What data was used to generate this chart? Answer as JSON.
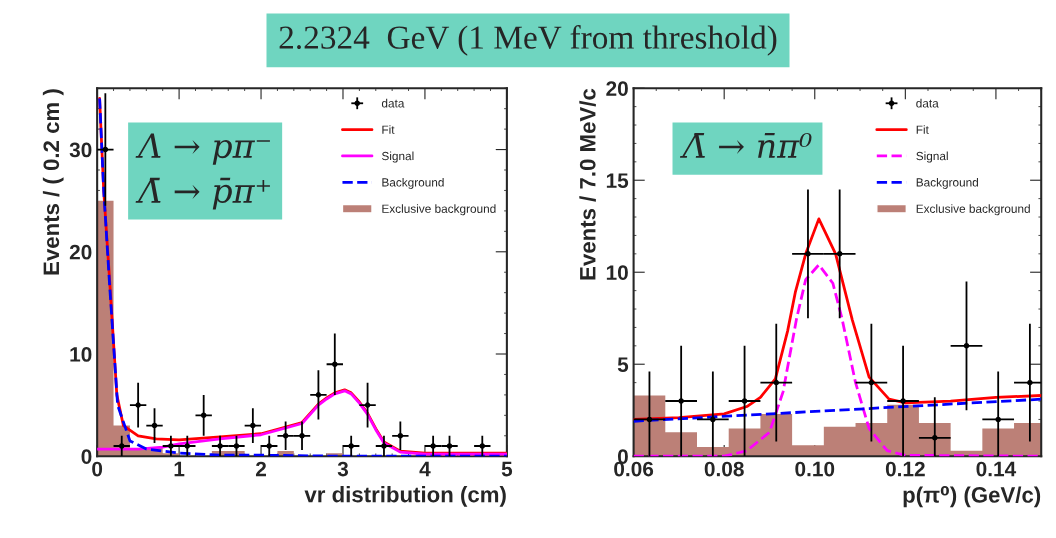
{
  "chart_data": [
    {
      "type": "line",
      "title": "2.2324  GeV (1 MeV from threshold)",
      "xlabel": "vr distribution (cm)",
      "ylabel": "Events / ( 0.2 cm )",
      "xlim": [
        0,
        5
      ],
      "ylim": [
        0,
        36
      ],
      "xticks": [
        0,
        1,
        2,
        3,
        4,
        5
      ],
      "yticks": [
        0,
        10,
        20,
        30
      ],
      "legend": "top right",
      "annotations": [
        "Λ → pπ⁻\nΛ̄ → p̄π⁺"
      ],
      "series": [
        {
          "name": "data",
          "type": "scatter",
          "color": "#000000",
          "marker": "circle",
          "x": [
            0.1,
            0.3,
            0.5,
            0.7,
            0.9,
            1.1,
            1.3,
            1.5,
            1.7,
            1.9,
            2.1,
            2.3,
            2.5,
            2.7,
            2.9,
            3.1,
            3.3,
            3.5,
            3.7,
            4.1,
            4.3,
            4.7
          ],
          "values": [
            30,
            1,
            5,
            3,
            1,
            1,
            4,
            1,
            1,
            3,
            1,
            2,
            2,
            6,
            9,
            1,
            5,
            1,
            2,
            1,
            1,
            1
          ],
          "errors": [
            5.5,
            1,
            2.2,
            1.7,
            1,
            1,
            2,
            1,
            1,
            1.7,
            1,
            1.4,
            1.4,
            2.4,
            3,
            1,
            2.2,
            1,
            1.4,
            1,
            1,
            1
          ],
          "xerrors": [
            0.1,
            0.1,
            0.1,
            0.1,
            0.1,
            0.1,
            0.1,
            0.1,
            0.1,
            0.1,
            0.1,
            0.1,
            0.1,
            0.1,
            0.1,
            0.1,
            0.1,
            0.1,
            0.1,
            0.1,
            0.1,
            0.1
          ]
        },
        {
          "name": "Fit",
          "color": "#ff0000",
          "line_style": "solid",
          "x": [
            0.03,
            0.08,
            0.15,
            0.24,
            0.32,
            0.5,
            0.72,
            1.0,
            1.5,
            2.0,
            2.5,
            2.7,
            2.8,
            2.9,
            3.02,
            3.1,
            3.2,
            3.3,
            3.4,
            3.5,
            3.7,
            4.0,
            4.5,
            5.0
          ],
          "values": [
            35,
            26,
            17.5,
            6,
            3,
            2,
            1.7,
            1.6,
            1.9,
            2.2,
            3.3,
            5.1,
            5.7,
            6.2,
            6.5,
            6.2,
            5.3,
            4.2,
            2.7,
            1.4,
            0.5,
            0.3,
            0.3,
            0.3
          ]
        },
        {
          "name": "Signal",
          "color": "#ff00ff",
          "line_style": "solid",
          "x": [
            0.0,
            0.5,
            0.8,
            1.0,
            1.5,
            2.0,
            2.5,
            2.7,
            2.8,
            2.9,
            3.02,
            3.1,
            3.2,
            3.3,
            3.4,
            3.5,
            3.7,
            4.0,
            4.5,
            5.0
          ],
          "values": [
            0.7,
            0.7,
            0.9,
            1.2,
            1.7,
            2.1,
            3.2,
            5.0,
            5.6,
            6.1,
            6.4,
            6.1,
            5.2,
            4.1,
            2.6,
            1.3,
            0.4,
            0.2,
            0.2,
            0.2
          ]
        },
        {
          "name": "Background",
          "color": "#0000ff",
          "line_style": "dashed",
          "x": [
            0.03,
            0.08,
            0.15,
            0.25,
            0.4,
            0.6,
            1.0,
            1.5,
            2.0,
            3.0,
            4.0,
            5.0
          ],
          "values": [
            35,
            26,
            17,
            5,
            1.5,
            0.7,
            0.3,
            0.1,
            0.1,
            0.0,
            0.0,
            0.0
          ]
        },
        {
          "name": "Exclusive background",
          "type": "histogram",
          "color": "#bc8077",
          "bins": [
            0,
            0.2,
            0.4,
            0.6,
            0.8,
            1.0,
            1.2,
            1.4,
            1.6,
            1.8,
            2.0,
            2.2,
            2.4,
            2.6,
            2.8,
            3.0
          ],
          "values": [
            25,
            3,
            0.8,
            0.8,
            0.3,
            0,
            0,
            0.5,
            0.5,
            0,
            0,
            0.5,
            0,
            0,
            0.3
          ]
        }
      ]
    },
    {
      "type": "line",
      "xlabel": "p(π⁰) (GeV/c)",
      "ylabel": "Events / 7.0 MeV/c",
      "xlim": [
        0.06,
        0.15
      ],
      "ylim": [
        0,
        20
      ],
      "xticks": [
        0.06,
        0.08,
        {
          "value": 0.1,
          "label": "0.10"
        },
        0.12,
        0.14
      ],
      "yticks": [
        0,
        5,
        10,
        15,
        20
      ],
      "legend": "top right",
      "annotations": [
        "Λ̄ → n̄π⁰"
      ],
      "series": [
        {
          "name": "data",
          "type": "scatter",
          "color": "#000000",
          "marker": "circle",
          "x": [
            0.0635,
            0.0705,
            0.0775,
            0.0845,
            0.0915,
            0.0985,
            0.1055,
            0.1125,
            0.1195,
            0.1265,
            0.1335,
            0.1405,
            0.1475
          ],
          "values": [
            2,
            3,
            2,
            3,
            4,
            11,
            11,
            4,
            3,
            1,
            6,
            2,
            4
          ],
          "errors": [
            2.6,
            3,
            2.6,
            3,
            3.2,
            3.5,
            3.5,
            3.2,
            3,
            2.2,
            3.5,
            2.6,
            3.2
          ],
          "xerrors": [
            0.0035,
            0.0035,
            0.0035,
            0.0035,
            0.0035,
            0.0035,
            0.0035,
            0.0035,
            0.0035,
            0.0035,
            0.0035,
            0.0035,
            0.0035
          ]
        },
        {
          "name": "Fit",
          "color": "#ff0000",
          "line_style": "solid",
          "x": [
            0.06,
            0.07,
            0.08,
            0.085,
            0.088,
            0.0913,
            0.094,
            0.0957,
            0.098,
            0.1009,
            0.1046,
            0.1083,
            0.112,
            0.1164,
            0.12,
            0.13,
            0.14,
            0.15
          ],
          "values": [
            2.0,
            2.1,
            2.3,
            2.7,
            3.2,
            4.2,
            6.8,
            8.9,
            11,
            12.9,
            11,
            7.4,
            4.3,
            3.1,
            2.9,
            3.0,
            3.2,
            3.3
          ]
        },
        {
          "name": "Signal",
          "color": "#ff00ff",
          "line_style": "dashed",
          "x": [
            0.06,
            0.08,
            0.085,
            0.09,
            0.093,
            0.096,
            0.098,
            0.1009,
            0.104,
            0.106,
            0.109,
            0.112,
            0.116,
            0.12,
            0.15
          ],
          "values": [
            0,
            0,
            0.3,
            1.3,
            3.5,
            7.5,
            9.6,
            10.4,
            9.4,
            7.5,
            4,
            1.5,
            0.3,
            0.05,
            0
          ]
        },
        {
          "name": "Background",
          "color": "#0000ff",
          "line_style": "dashed",
          "x": [
            0.06,
            0.15
          ],
          "values": [
            1.9,
            3.1
          ]
        },
        {
          "name": "Exclusive background",
          "type": "histogram",
          "color": "#bc8077",
          "bins": [
            0.06,
            0.067,
            0.074,
            0.081,
            0.088,
            0.095,
            0.102,
            0.109,
            0.116,
            0.123,
            0.13,
            0.137,
            0.144,
            0.15
          ],
          "values": [
            3.3,
            1.3,
            0.5,
            1.5,
            2.3,
            0.6,
            1.6,
            1.8,
            2.8,
            1.8,
            0.3,
            1.5,
            1.8
          ]
        }
      ]
    }
  ]
}
